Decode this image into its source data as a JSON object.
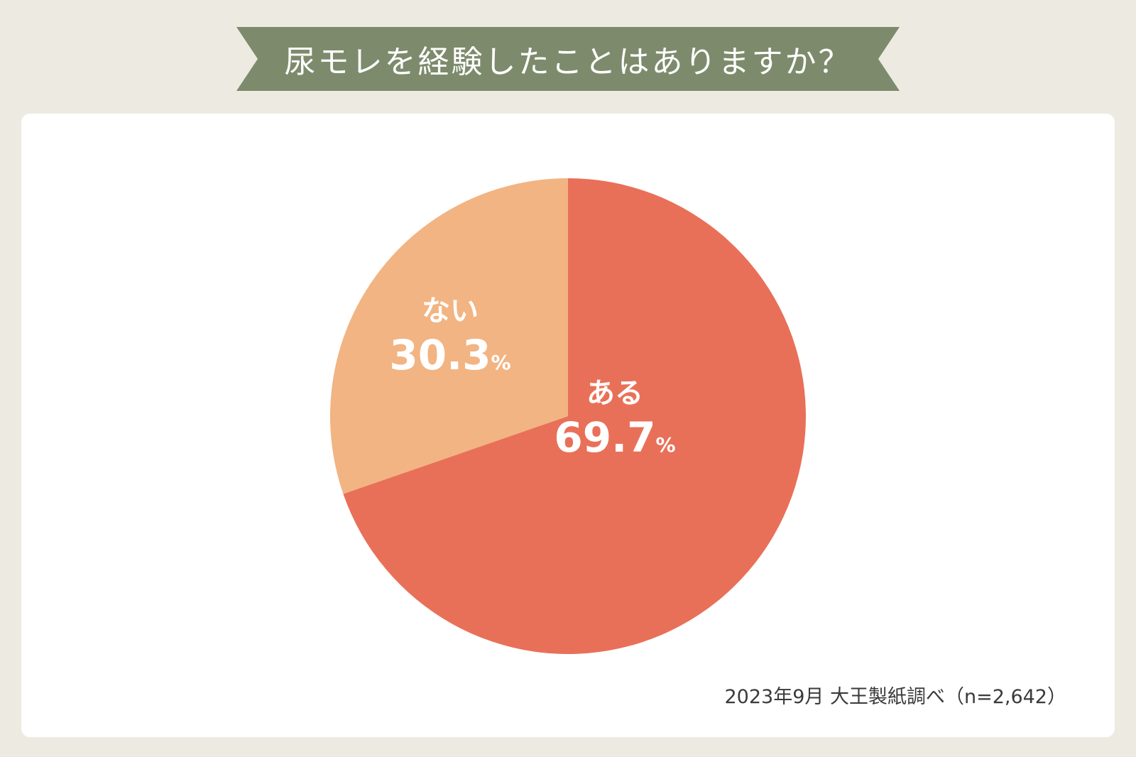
{
  "banner": {
    "title": "尿モレを経験したことはありますか？",
    "color": "#7d8b6c"
  },
  "chart_data": {
    "type": "pie",
    "slices": [
      {
        "label": "ある",
        "value": 69.7,
        "unit": "%",
        "color": "#e97058"
      },
      {
        "label": "ない",
        "value": 30.3,
        "unit": "%",
        "color": "#f2b482"
      }
    ]
  },
  "source_note": "2023年9月 大王製紙調べ（n=2,642）"
}
